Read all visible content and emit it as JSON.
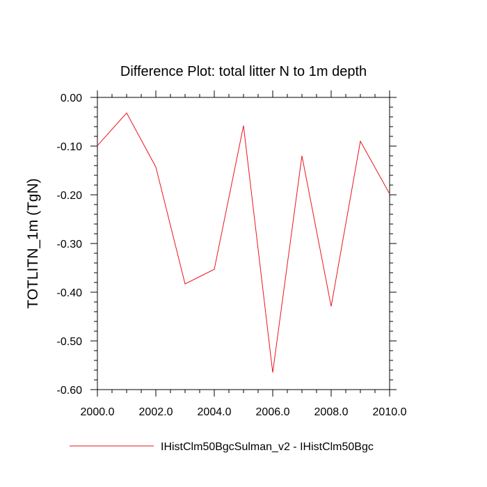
{
  "chart_data": {
    "type": "line",
    "title": "Difference Plot: total litter N to 1m depth",
    "xlabel": "",
    "ylabel": "TOTLITN_1m  (TgN)",
    "xlim": [
      2000.0,
      2010.0
    ],
    "ylim": [
      -0.6,
      0.0
    ],
    "xticks": [
      2000.0,
      2002.0,
      2004.0,
      2006.0,
      2008.0,
      2010.0
    ],
    "xtick_labels": [
      "2000.0",
      "2002.0",
      "2004.0",
      "2006.0",
      "2008.0",
      "2010.0"
    ],
    "yticks": [
      0.0,
      -0.1,
      -0.2,
      -0.3,
      -0.4,
      -0.5,
      -0.6
    ],
    "ytick_labels": [
      "0.00",
      "-0.10",
      "-0.20",
      "-0.30",
      "-0.40",
      "-0.50",
      "-0.60"
    ],
    "grid": false,
    "legend_position": "bottom",
    "series": [
      {
        "name": "IHistClm50BgcSulman_v2 - IHistClm50Bgc",
        "color": "#e8141e",
        "x": [
          2000,
          2001,
          2002,
          2003,
          2004,
          2005,
          2006,
          2007,
          2008,
          2009,
          2010
        ],
        "y": [
          -0.099,
          -0.032,
          -0.143,
          -0.383,
          -0.353,
          -0.058,
          -0.565,
          -0.12,
          -0.429,
          -0.09,
          -0.198
        ]
      }
    ]
  }
}
